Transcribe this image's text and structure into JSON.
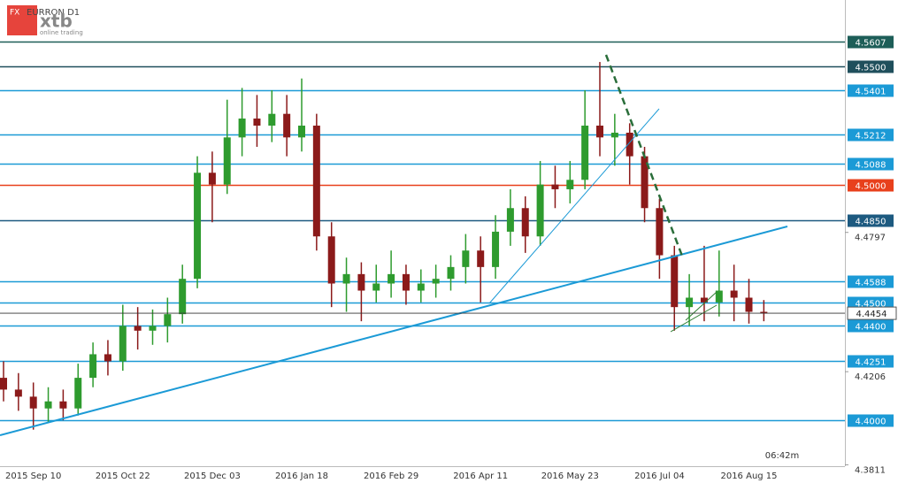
{
  "header": {
    "badge": "FX",
    "symbol": "EURRON D1",
    "logo": "xtb",
    "tagline": "online trading"
  },
  "chart_data": {
    "type": "candlestick",
    "categories": [
      null,
      null,
      "2015 Sep 10",
      null,
      null,
      null,
      null,
      null,
      "2015 Oct 22",
      null,
      null,
      null,
      null,
      null,
      "2015 Dec 03",
      null,
      null,
      null,
      null,
      null,
      "2016 Jan 18",
      null,
      null,
      null,
      null,
      null,
      "2016 Feb 29",
      null,
      null,
      null,
      null,
      null,
      "2016 Apr 11",
      null,
      null,
      null,
      null,
      null,
      "2016 May 23",
      null,
      null,
      null,
      null,
      null,
      "2016 Jul 04",
      null,
      null,
      null,
      null,
      null,
      "2016 Aug 15",
      null
    ],
    "open": [
      4.418,
      4.413,
      4.41,
      4.405,
      4.408,
      4.405,
      4.418,
      4.428,
      4.425,
      4.44,
      4.438,
      4.44,
      4.445,
      4.46,
      4.505,
      4.5,
      4.52,
      4.528,
      4.525,
      4.53,
      4.52,
      4.525,
      4.478,
      4.458,
      4.462,
      4.455,
      4.458,
      4.462,
      4.455,
      4.458,
      4.46,
      4.465,
      4.472,
      4.465,
      4.48,
      4.49,
      4.478,
      4.5,
      4.498,
      4.502,
      4.525,
      4.52,
      4.522,
      4.512,
      4.49,
      4.47,
      4.448,
      4.452,
      4.45,
      4.455,
      4.452,
      4.446
    ],
    "high": [
      4.425,
      4.42,
      4.416,
      4.414,
      4.413,
      4.424,
      4.433,
      4.434,
      4.449,
      4.448,
      4.447,
      4.452,
      4.466,
      4.512,
      4.514,
      4.536,
      4.541,
      4.538,
      4.54,
      4.538,
      4.545,
      4.53,
      4.484,
      4.469,
      4.467,
      4.466,
      4.472,
      4.466,
      4.464,
      4.466,
      4.47,
      4.479,
      4.478,
      4.487,
      4.498,
      4.495,
      4.51,
      4.508,
      4.51,
      4.54,
      4.552,
      4.53,
      4.526,
      4.516,
      4.494,
      4.474,
      4.462,
      4.474,
      4.472,
      4.466,
      4.46,
      4.451
    ],
    "low": [
      4.408,
      4.404,
      4.396,
      4.399,
      4.4,
      4.402,
      4.414,
      4.419,
      4.421,
      4.43,
      4.432,
      4.433,
      4.441,
      4.456,
      4.484,
      4.496,
      4.512,
      4.516,
      4.518,
      4.512,
      4.514,
      4.472,
      4.448,
      4.446,
      4.442,
      4.45,
      4.452,
      4.449,
      4.45,
      4.452,
      4.455,
      4.458,
      4.45,
      4.46,
      4.474,
      4.471,
      4.474,
      4.49,
      4.492,
      4.498,
      4.512,
      4.508,
      4.5,
      4.484,
      4.46,
      4.438,
      4.44,
      4.442,
      4.444,
      4.442,
      4.441,
      4.442
    ],
    "close": [
      4.413,
      4.41,
      4.405,
      4.408,
      4.405,
      4.418,
      4.428,
      4.425,
      4.44,
      4.438,
      4.44,
      4.445,
      4.46,
      4.505,
      4.5,
      4.52,
      4.528,
      4.525,
      4.53,
      4.52,
      4.525,
      4.478,
      4.458,
      4.462,
      4.455,
      4.458,
      4.462,
      4.455,
      4.458,
      4.46,
      4.465,
      4.472,
      4.465,
      4.48,
      4.49,
      4.478,
      4.5,
      4.498,
      4.502,
      4.525,
      4.52,
      4.522,
      4.512,
      4.49,
      4.47,
      4.448,
      4.452,
      4.45,
      4.455,
      4.452,
      4.446,
      4.4454
    ],
    "up_color": "#2e9b2e",
    "down_color": "#8b1a1a",
    "ylim": [
      4.3805,
      4.5783
    ],
    "yticks": [
      4.4797,
      4.4206,
      4.3811
    ],
    "levels": [
      {
        "value": 4.5607,
        "label": "4.5607",
        "color": "#1d5e58"
      },
      {
        "value": 4.55,
        "label": "4.5500",
        "color": "#1f4f5c"
      },
      {
        "value": 4.5401,
        "label": "4.5401",
        "color": "#1b9ad6"
      },
      {
        "value": 4.5212,
        "label": "4.5212",
        "color": "#1b9ad6"
      },
      {
        "value": 4.5088,
        "label": "4.5088",
        "color": "#1b9ad6"
      },
      {
        "value": 4.5,
        "label": "4.5000",
        "color": "#e8401c"
      },
      {
        "value": 4.485,
        "label": "4.4850",
        "color": "#1d5a80"
      },
      {
        "value": 4.4588,
        "label": "4.4588",
        "color": "#1b9ad6"
      },
      {
        "value": 4.45,
        "label": "4.4500",
        "color": "#1b9ad6"
      },
      {
        "value": 4.44,
        "label": "4.4400",
        "color": "#1b9ad6"
      },
      {
        "value": 4.4251,
        "label": "4.4251",
        "color": "#1b9ad6"
      },
      {
        "value": 4.4,
        "label": "4.4000",
        "color": "#1b9ad6"
      }
    ],
    "current_price": 4.4454,
    "timer": "06:42m"
  }
}
